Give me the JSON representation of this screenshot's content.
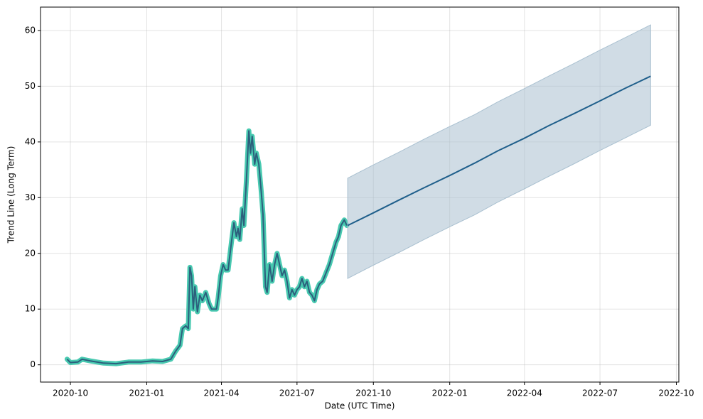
{
  "chart_data": {
    "type": "line",
    "xlabel": "Date (UTC Time)",
    "ylabel": "Trend Line (Long Term)",
    "xlim": [
      "2020-08-26",
      "2022-10-04"
    ],
    "xticks": [
      "2020-10",
      "2021-01",
      "2021-04",
      "2021-07",
      "2021-10",
      "2022-01",
      "2022-04",
      "2022-07",
      "2022-10"
    ],
    "ylim": [
      -3.1,
      64.2
    ],
    "yticks": [
      0,
      10,
      20,
      30,
      40,
      50,
      60
    ],
    "grid": true,
    "series": [
      {
        "color": "#2c5f7c",
        "glow": "#48c9b0",
        "x": [
          "2020-09-27",
          "2020-10-01",
          "2020-10-10",
          "2020-10-15",
          "2020-10-25",
          "2020-11-10",
          "2020-11-25",
          "2020-12-10",
          "2020-12-25",
          "2021-01-08",
          "2021-01-20",
          "2021-01-30",
          "2021-02-05",
          "2021-02-10",
          "2021-02-13",
          "2021-02-17",
          "2021-02-20",
          "2021-02-22",
          "2021-02-24",
          "2021-02-26",
          "2021-02-28",
          "2021-03-03",
          "2021-03-06",
          "2021-03-09",
          "2021-03-13",
          "2021-03-17",
          "2021-03-20",
          "2021-03-26",
          "2021-03-28",
          "2021-03-31",
          "2021-04-03",
          "2021-04-06",
          "2021-04-09",
          "2021-04-13",
          "2021-04-16",
          "2021-04-19",
          "2021-04-21",
          "2021-04-23",
          "2021-04-26",
          "2021-04-28",
          "2021-05-01",
          "2021-05-04",
          "2021-05-06",
          "2021-05-08",
          "2021-05-11",
          "2021-05-13",
          "2021-05-16",
          "2021-05-19",
          "2021-05-21",
          "2021-05-24",
          "2021-05-26",
          "2021-05-29",
          "2021-06-01",
          "2021-06-04",
          "2021-06-07",
          "2021-06-10",
          "2021-06-13",
          "2021-06-16",
          "2021-06-19",
          "2021-06-22",
          "2021-06-25",
          "2021-06-28",
          "2021-07-01",
          "2021-07-04",
          "2021-07-07",
          "2021-07-10",
          "2021-07-13",
          "2021-07-16",
          "2021-07-19",
          "2021-07-22",
          "2021-07-25",
          "2021-07-28",
          "2021-08-01",
          "2021-08-05",
          "2021-08-09",
          "2021-08-13",
          "2021-08-17",
          "2021-08-20",
          "2021-08-23",
          "2021-08-27",
          "2021-08-30"
        ],
        "values": [
          1.0,
          0.4,
          0.5,
          1.0,
          0.7,
          0.3,
          0.2,
          0.5,
          0.5,
          0.7,
          0.6,
          1.0,
          2.5,
          3.5,
          6.5,
          7.0,
          6.5,
          17.5,
          16,
          10,
          14,
          9.5,
          12.5,
          11.5,
          13,
          11,
          10,
          10,
          12,
          16,
          18,
          17,
          17,
          22,
          25.5,
          23,
          24.5,
          22.5,
          28,
          25,
          33,
          42,
          38,
          41,
          36,
          38,
          36,
          31,
          27,
          14,
          13,
          18,
          15,
          18,
          20,
          18,
          16,
          17,
          15,
          12,
          13.5,
          12.5,
          13.5,
          14,
          15.5,
          14,
          15,
          13,
          12.5,
          11.5,
          13.5,
          14.5,
          15,
          16.5,
          18,
          20,
          22,
          23,
          25,
          26,
          25
        ]
      },
      {
        "color": "#1f5f8b",
        "band_color": "#a9c0d0",
        "x": [
          "2021-08-31",
          "2021-09-30",
          "2021-10-31",
          "2021-11-30",
          "2021-12-31",
          "2022-01-31",
          "2022-02-28",
          "2022-03-31",
          "2022-04-30",
          "2022-05-31",
          "2022-06-30",
          "2022-07-31",
          "2022-08-31"
        ],
        "values": [
          25,
          27.2,
          29.5,
          31.7,
          33.9,
          36.2,
          38.4,
          40.6,
          42.9,
          45.1,
          47.3,
          49.6,
          51.8
        ],
        "upper": [
          33.5,
          35.8,
          38.1,
          40.4,
          42.7,
          44.9,
          47.2,
          49.5,
          51.8,
          54.1,
          56.4,
          58.7,
          61
        ],
        "lower": [
          15.5,
          17.8,
          20.1,
          22.4,
          24.7,
          26.9,
          29.2,
          31.5,
          33.8,
          36.1,
          38.4,
          40.7,
          43
        ]
      }
    ]
  }
}
